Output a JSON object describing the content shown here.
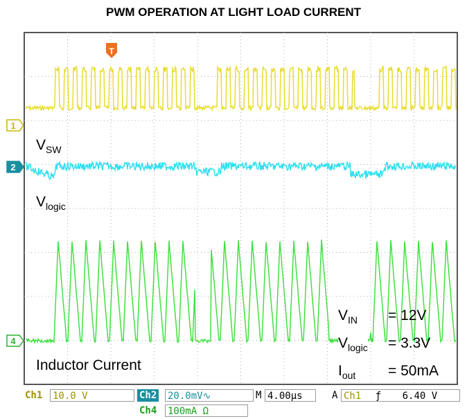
{
  "title": "PWM OPERATION AT LIGHT LOAD CURRENT",
  "markers": {
    "trigger": "T",
    "ch1": "1",
    "ch2": "2",
    "ch4": "4"
  },
  "labels": {
    "vsw": {
      "main": "V",
      "sub": "SW"
    },
    "vlogic": {
      "main": "V",
      "sub": "logic"
    },
    "inductor": "Inductor Current"
  },
  "conditions": [
    {
      "main": "V",
      "sub": "IN",
      "value": "= 12V"
    },
    {
      "main": "V",
      "sub": "logic",
      "value": "= 3.3V"
    },
    {
      "main": "I",
      "sub": "out",
      "value": "= 50mA"
    }
  ],
  "status": {
    "ch1": "Ch1",
    "ch1_scale": "10.0 V",
    "ch2": "Ch2",
    "ch2_scale": "20.0mV∿",
    "time_prefix": "M",
    "time_scale": "4.00µs",
    "trig_prefix": "A",
    "trig_source": "Ch1",
    "trig_slope": "ƒ",
    "trig_level": "6.40 V",
    "ch4": "Ch4",
    "ch4_scale": "100mA Ω"
  }
}
